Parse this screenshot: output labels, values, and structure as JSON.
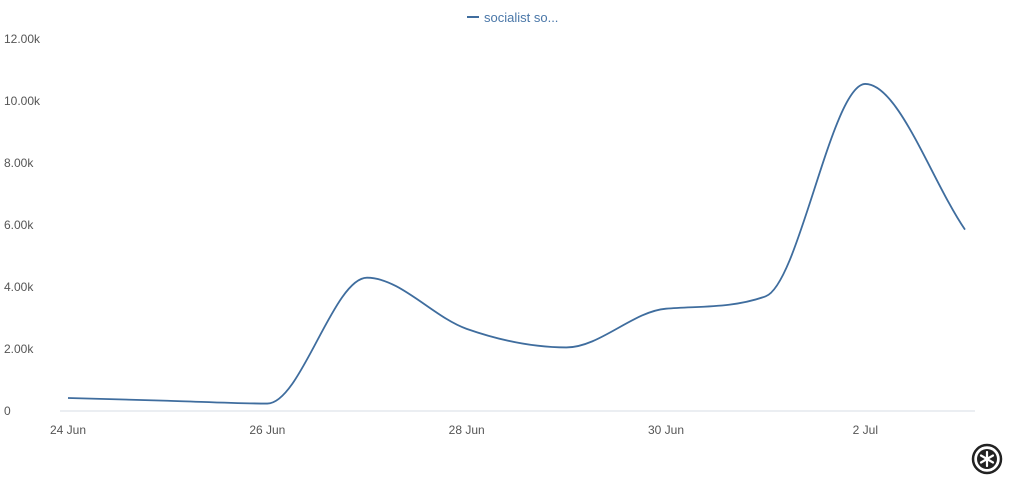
{
  "chart_data": {
    "type": "line",
    "series": [
      {
        "name": "socialist so...",
        "color": "#3f6d9e",
        "x": [
          "24 Jun",
          "25 Jun",
          "26 Jun",
          "27 Jun",
          "28 Jun",
          "29 Jun",
          "30 Jun",
          "1 Jul",
          "2 Jul",
          "3 Jul"
        ],
        "values": [
          420,
          330,
          240,
          4300,
          2650,
          2050,
          3300,
          3700,
          10550,
          5850
        ]
      }
    ],
    "x_tick_labels": [
      "24 Jun",
      "26 Jun",
      "28 Jun",
      "30 Jun",
      "2 Jul"
    ],
    "y_tick_labels": [
      "0",
      "2.00k",
      "4.00k",
      "6.00k",
      "8.00k",
      "10.00k",
      "12.00k"
    ],
    "ylim": [
      0,
      12000
    ],
    "grid": false,
    "legend": "top-center"
  },
  "logo_icon": "asterisk-circle-logo"
}
